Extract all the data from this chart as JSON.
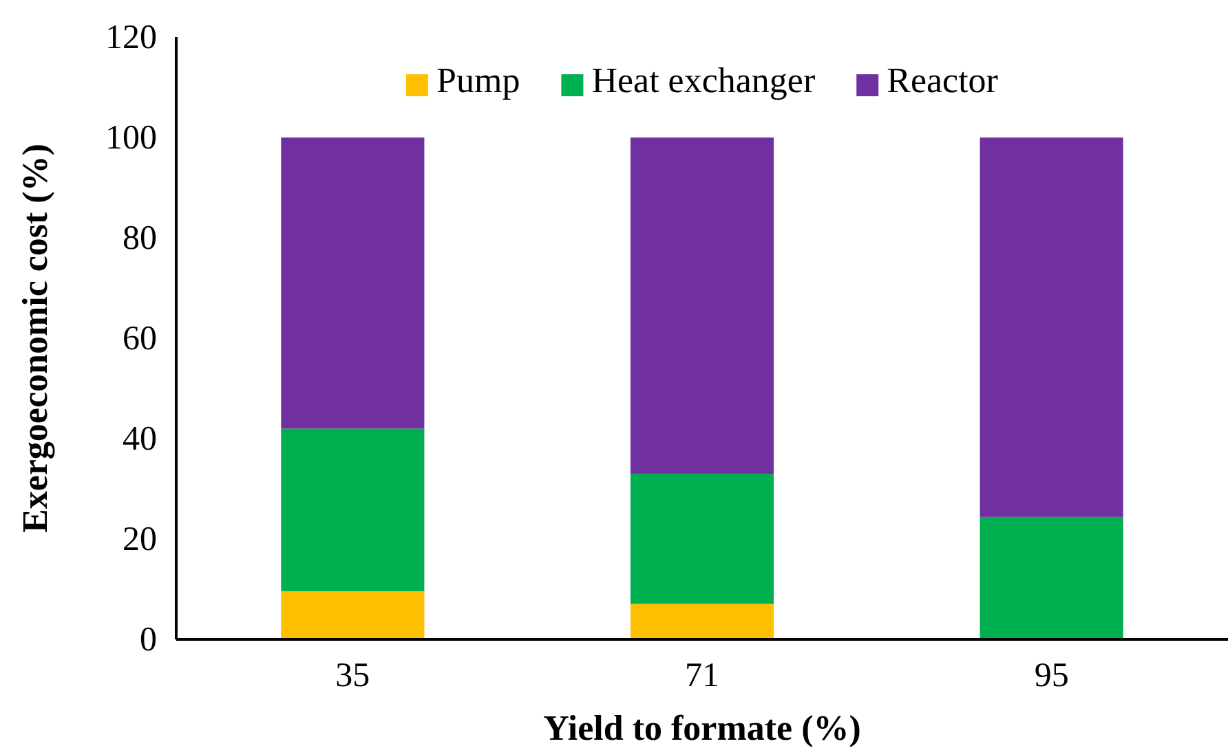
{
  "chart_data": {
    "type": "bar",
    "stacked": true,
    "xlabel": "Yield to formate (%)",
    "ylabel": "Exergoeconomic cost (%)",
    "categories": [
      "35",
      "71",
      "95"
    ],
    "series": [
      {
        "name": "Pump",
        "color": "#ffc000",
        "values": [
          9.6,
          7.1,
          0
        ]
      },
      {
        "name": "Heat exchanger",
        "color": "#00b050",
        "values": [
          32.4,
          25.9,
          24.4
        ]
      },
      {
        "name": "Reactor",
        "color": "#7030a0",
        "values": [
          58,
          67,
          75.6
        ]
      }
    ],
    "ylim": [
      0,
      120
    ],
    "yticks": [
      0,
      20,
      40,
      60,
      80,
      100,
      120
    ],
    "grid": false,
    "legend": "top"
  }
}
